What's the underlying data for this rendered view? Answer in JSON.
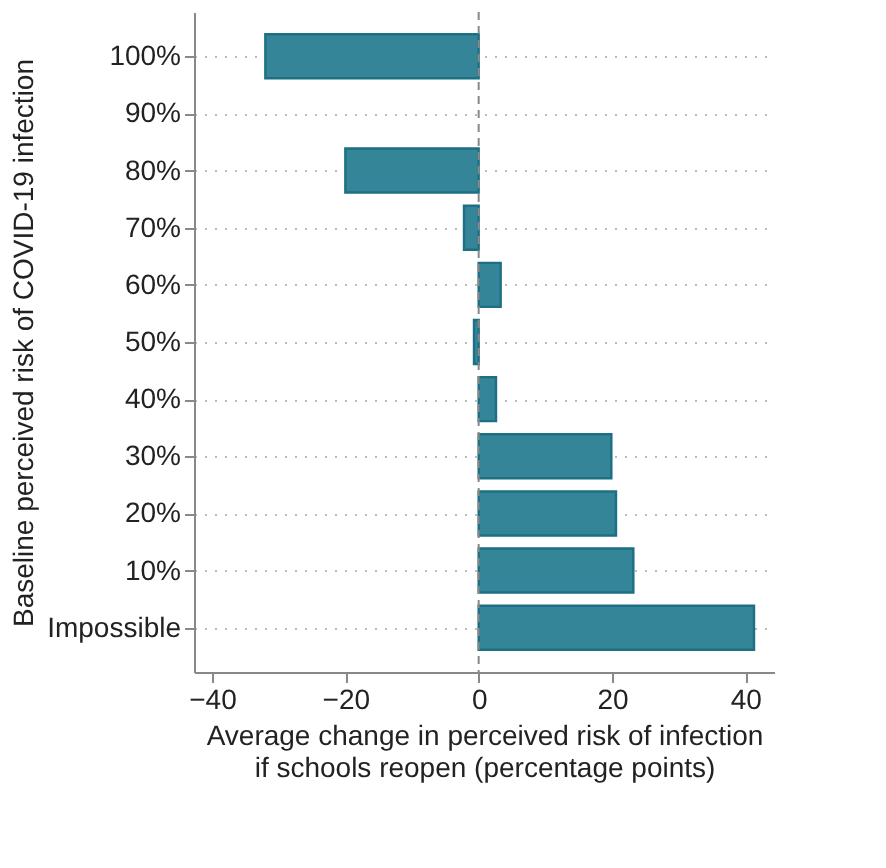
{
  "chart_data": {
    "type": "bar",
    "orientation": "horizontal",
    "ylabel": "Baseline perceived risk of COVID-19 infection",
    "xlabel": "Average change in perceived risk of infection\nif schools reopen (percentage points)",
    "categories": [
      "100%",
      "90%",
      "80%",
      "70%",
      "60%",
      "50%",
      "40%",
      "30%",
      "20%",
      "10%",
      "Impossible"
    ],
    "values": [
      -32,
      null,
      -20,
      -2.2,
      3.3,
      -0.7,
      2.6,
      19.9,
      20.6,
      23.2,
      41.3
    ],
    "color": "#348598",
    "xlim": [
      -42.7,
      44.3
    ],
    "xticks": [
      -40,
      -20,
      0,
      20,
      40
    ],
    "grid": "y",
    "ref_lines": [
      {
        "axis": "x",
        "value": 0,
        "color": "#888888",
        "line_style": "dashed"
      }
    ]
  }
}
